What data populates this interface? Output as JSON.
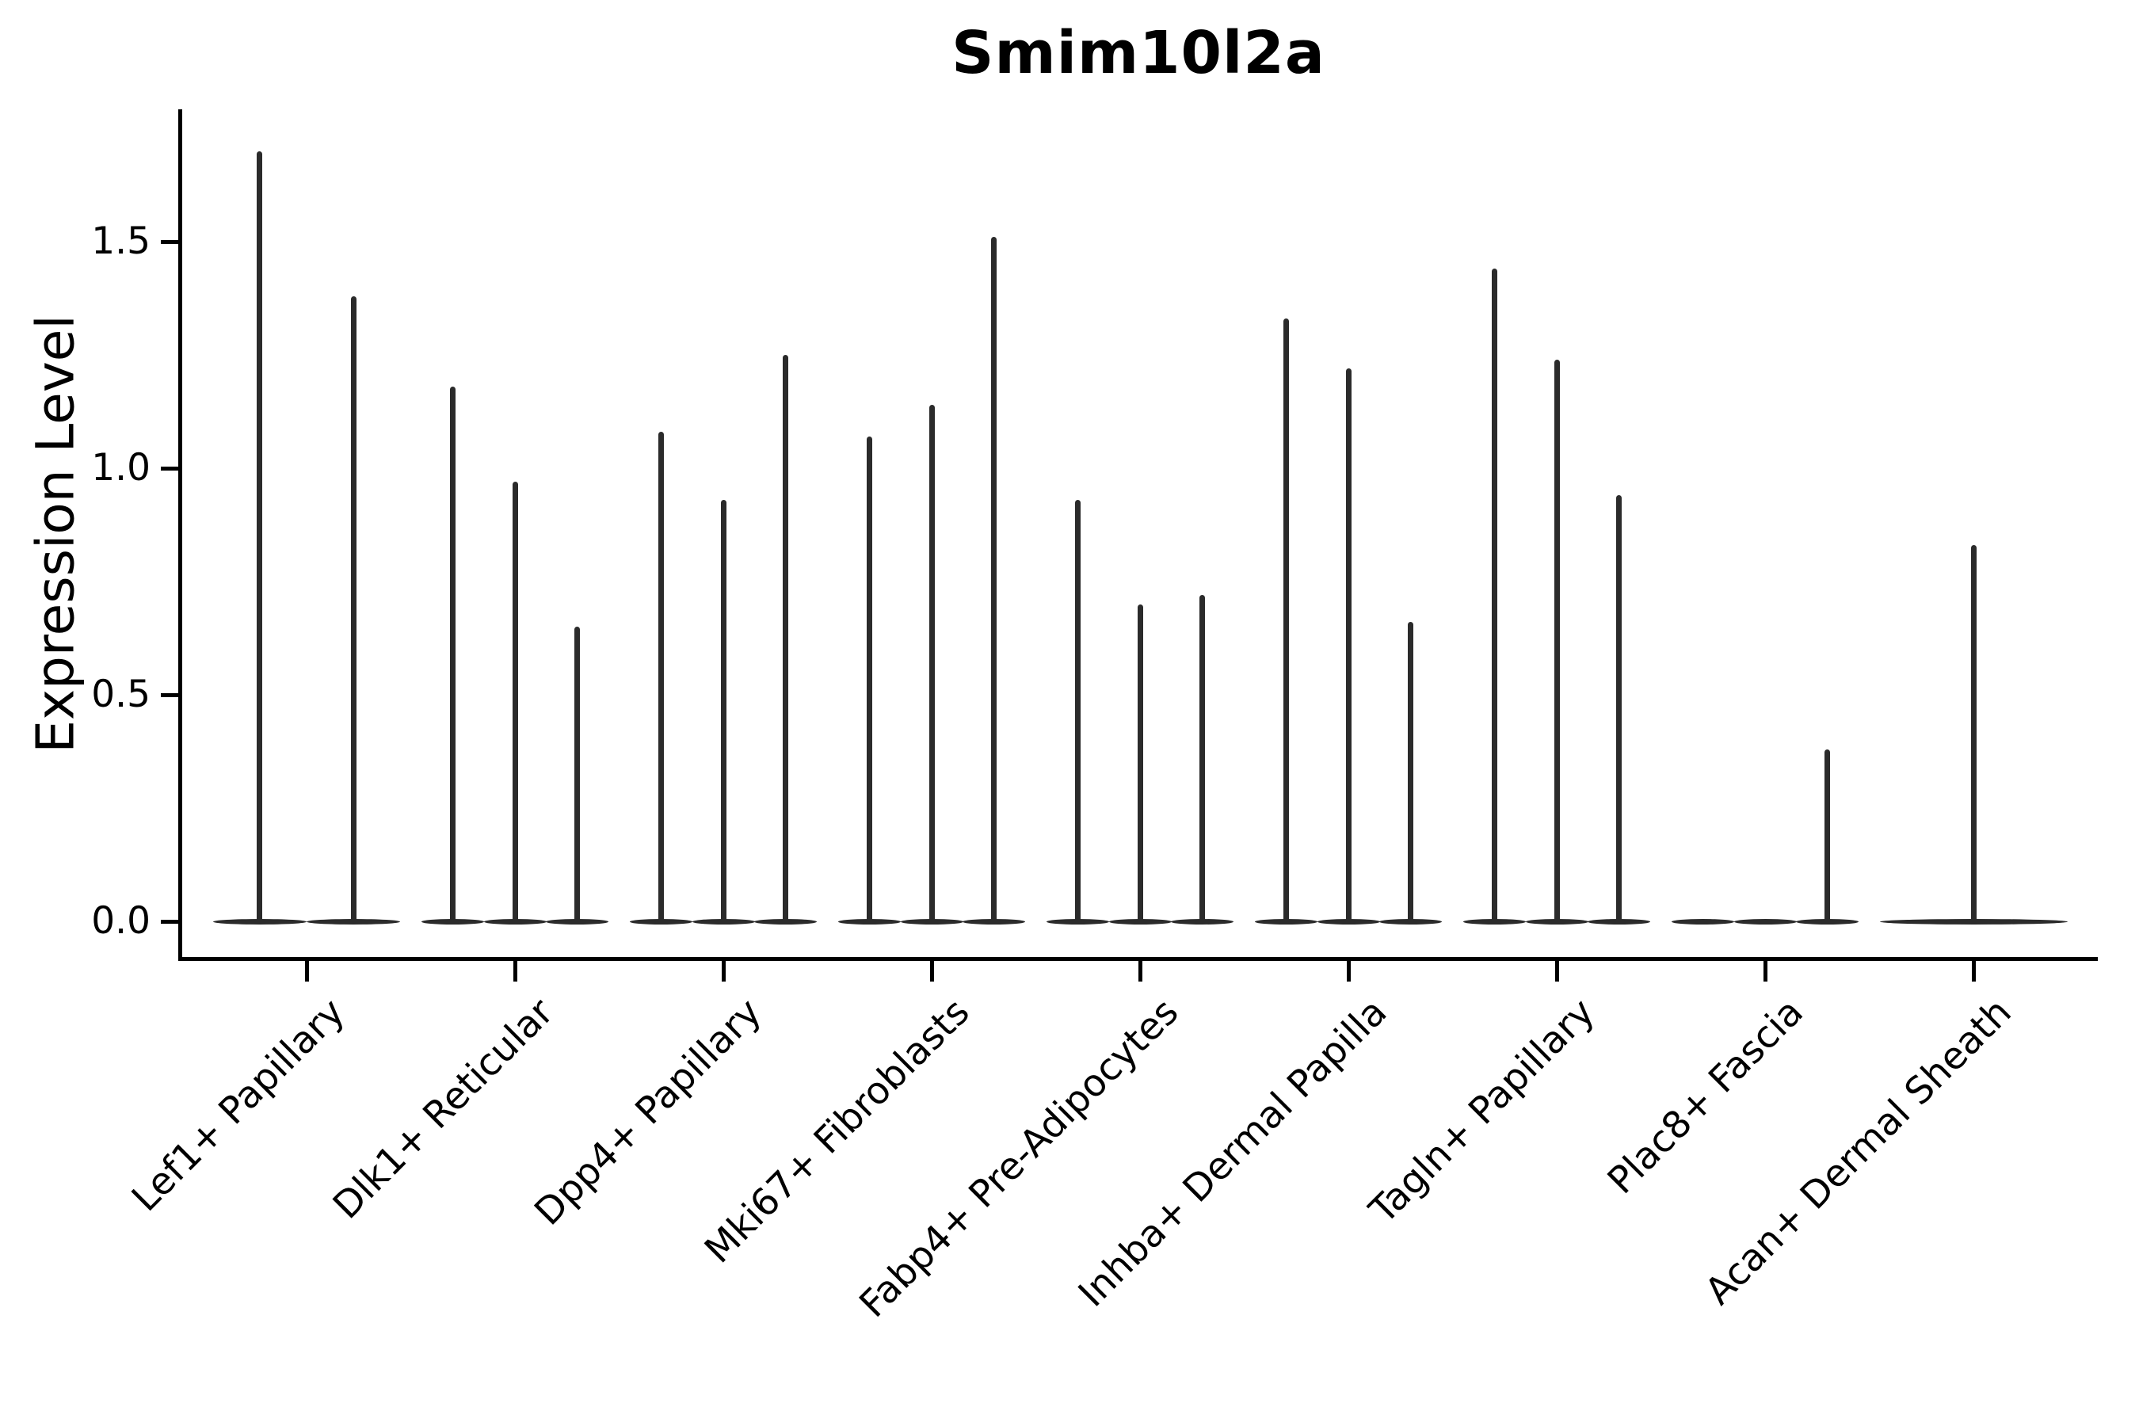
{
  "title": "Smim10l2a",
  "y_axis": {
    "label": "Expression Level",
    "tick_labels": [
      "0.0",
      "0.5",
      "1.0",
      "1.5"
    ]
  },
  "chart_data": {
    "type": "violin",
    "title": "Smim10l2a",
    "xlabel": "",
    "ylabel": "Expression Level",
    "yticks": [
      0.0,
      0.5,
      1.0,
      1.5
    ],
    "ylim": [
      -0.08,
      1.79
    ],
    "grid": false,
    "legend": "none",
    "line_color": "#2b2b2b",
    "axis_color": "#000000",
    "categories": [
      "Lef1+ Papillary",
      "Dlk1+ Reticular",
      "Dpp4+ Papillary",
      "Mki67+ Fibroblasts",
      "Fabp4+ Pre-Adipocytes",
      "Inhba+ Dermal Papilla",
      "Tagln+ Papillary",
      "Plac8+ Fascia",
      "Acan+ Dermal Sheath"
    ],
    "groups": [
      {
        "category": "Lef1+ Papillary",
        "violin_max_values": [
          1.7,
          1.38
        ]
      },
      {
        "category": "Dlk1+ Reticular",
        "violin_max_values": [
          1.18,
          0.97,
          0.65
        ]
      },
      {
        "category": "Dpp4+ Papillary",
        "violin_max_values": [
          1.08,
          0.93,
          1.25
        ]
      },
      {
        "category": "Mki67+ Fibroblasts",
        "violin_max_values": [
          1.07,
          1.14,
          1.51
        ]
      },
      {
        "category": "Fabp4+ Pre-Adipocytes",
        "violin_max_values": [
          0.93,
          0.7,
          0.72
        ]
      },
      {
        "category": "Inhba+ Dermal Papilla",
        "violin_max_values": [
          1.33,
          1.22,
          0.66
        ]
      },
      {
        "category": "Tagln+ Papillary",
        "violin_max_values": [
          1.44,
          1.24,
          0.94
        ]
      },
      {
        "category": "Plac8+ Fascia",
        "violin_max_values": [
          0.0,
          0.0,
          0.38
        ]
      },
      {
        "category": "Acan+ Dermal Sheath",
        "violin_max_values": [
          0.83
        ]
      }
    ],
    "note": "Each violin is density-collapsed: flat body at expression 0 with a needle spike up to the max expression value."
  }
}
